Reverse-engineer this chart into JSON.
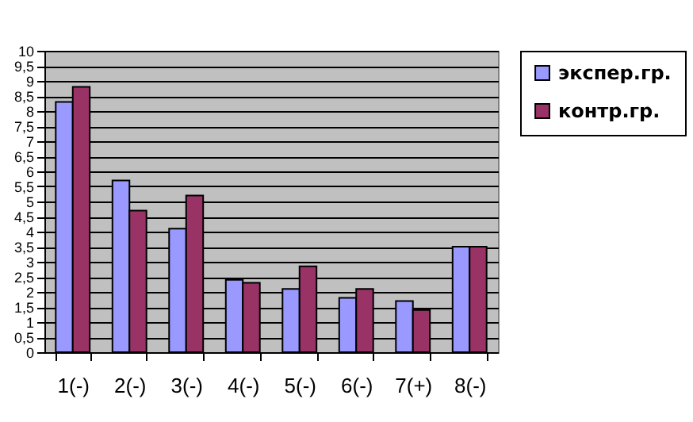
{
  "chart_data": {
    "type": "bar",
    "categories": [
      "1(-)",
      "2(-)",
      "3(-)",
      "4(-)",
      "5(-)",
      "6(-)",
      "7(+)",
      "8(-)"
    ],
    "series": [
      {
        "name": "экспер.гр.",
        "color": "#9999ff",
        "values": [
          8.3,
          5.7,
          4.1,
          2.4,
          2.1,
          1.8,
          1.7,
          3.5
        ]
      },
      {
        "name": "контр.гр.",
        "color": "#993366",
        "values": [
          8.8,
          4.7,
          5.2,
          2.3,
          2.85,
          2.1,
          1.4,
          3.5
        ]
      }
    ],
    "ylim": [
      0,
      10
    ],
    "yticks": [
      0,
      {
        "value": 0.5,
        "label": "0,5"
      },
      1,
      {
        "value": 1.5,
        "label": "1,5"
      },
      2,
      {
        "value": 2.5,
        "label": "2,5"
      },
      3,
      {
        "value": 3.5,
        "label": "3,5"
      },
      4,
      {
        "value": 4.5,
        "label": "4,5"
      },
      5,
      {
        "value": 5.5,
        "label": "5,5"
      },
      6,
      {
        "value": 6.5,
        "label": "6,5"
      },
      7,
      {
        "value": 7.5,
        "label": "7,5"
      },
      8,
      {
        "value": 8.5,
        "label": "8,5"
      },
      9,
      {
        "value": 9.5,
        "label": "9,5"
      },
      10
    ],
    "grid": "y",
    "legend": "right"
  }
}
